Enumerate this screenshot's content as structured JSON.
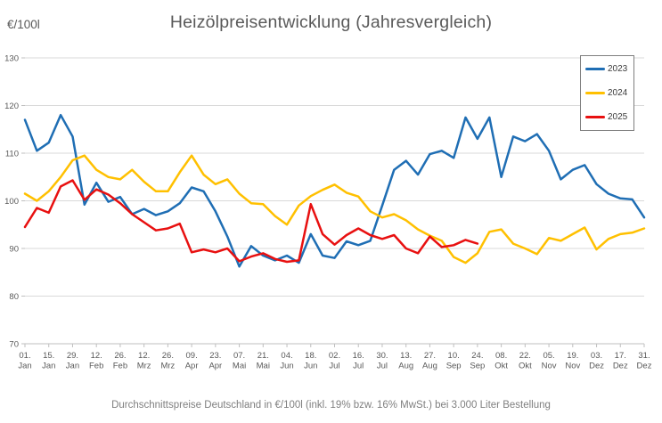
{
  "header": {
    "unit_label": "€/100l",
    "title": "Heizölpreisentwicklung (Jahresvergleich)"
  },
  "footer": {
    "caption": "Durchschnittspreise Deutschland in €/100l (inkl. 19% bzw. 16% MwSt.) bei 3.000 Liter Bestellung"
  },
  "colors": {
    "series_2023": "#1f6eb4",
    "series_2024": "#ffc000",
    "series_2025": "#e81010",
    "grid": "#d9d9d9",
    "axis": "#bfbfbf",
    "axis_text": "#595959",
    "title_text": "#595959",
    "legend_border": "#7f7f7f",
    "legend_text": "#3b3b3b",
    "footer_text": "#7f7f7f",
    "background": "#ffffff"
  },
  "chart_data": {
    "type": "line",
    "title": "Heizölpreisentwicklung (Jahresvergleich)",
    "ylabel": "€/100l",
    "xlabel": "",
    "ylim": [
      70,
      130
    ],
    "yticks": [
      130,
      120,
      110,
      100,
      90,
      80,
      70
    ],
    "grid": true,
    "legend_position": "top-right",
    "legend_entries": [
      "2023",
      "2024",
      "2025"
    ],
    "x_unit": "day_of_year",
    "days_in_year": 364,
    "sample_step_days": 7,
    "xticks": [
      "01. Jan",
      "15. Jan",
      "29. Jan",
      "12. Feb",
      "26. Feb",
      "12. Mrz",
      "26. Mrz",
      "09. Apr",
      "23. Apr",
      "07. Mai",
      "21. Mai",
      "04. Jun",
      "18. Jun",
      "02. Jul",
      "16. Jul",
      "30. Jul",
      "13. Aug",
      "27. Aug",
      "10. Sep",
      "24. Sep",
      "08. Okt",
      "22. Okt",
      "05. Nov",
      "19. Nov",
      "03. Dez",
      "17. Dez",
      "31. Dez"
    ],
    "series": [
      {
        "name": "2023",
        "color": "#1f6eb4",
        "values": [
          117,
          110.5,
          112.2,
          118,
          113.5,
          99.2,
          103.8,
          99.8,
          100.8,
          97.2,
          98.3,
          97,
          97.8,
          99.5,
          102.8,
          102,
          97.8,
          92.5,
          86.2,
          90.5,
          88.5,
          87.5,
          88.5,
          87,
          93,
          88.5,
          88,
          91.5,
          90.7,
          91.6,
          99,
          106.5,
          108.4,
          105.5,
          109.8,
          110.5,
          109,
          117.5,
          113,
          117.5,
          105,
          113.5,
          112.5,
          114,
          110.5,
          104.5,
          106.5,
          107.5,
          103.5,
          101.5,
          100.5,
          100.3,
          96.5
        ]
      },
      {
        "name": "2024",
        "color": "#ffc000",
        "values": [
          101.5,
          100,
          102,
          105,
          108.5,
          109.5,
          106.5,
          105,
          104.5,
          106.5,
          104,
          102,
          102,
          106,
          109.5,
          105.5,
          103.5,
          104.5,
          101.5,
          99.5,
          99.3,
          96.8,
          95,
          99,
          101,
          102.3,
          103.4,
          101.7,
          100.9,
          97.8,
          96.5,
          97.2,
          95.9,
          94,
          92.7,
          91.6,
          88.2,
          87,
          89,
          93.5,
          94,
          91,
          90,
          88.8,
          92.2,
          91.6,
          93,
          94.4,
          89.8,
          92,
          93,
          93.3,
          94.2
        ]
      },
      {
        "name": "2025",
        "color": "#e81010",
        "values": [
          94.5,
          98.5,
          97.5,
          103,
          104.3,
          100.2,
          102.4,
          101.3,
          99.5,
          97.2,
          95.5,
          93.8,
          94.2,
          95.2,
          89.2,
          89.8,
          89.2,
          90,
          87.3,
          88.3,
          89,
          87.8,
          87.2,
          87.5,
          99.3,
          93,
          90.8,
          92.8,
          94.2,
          92.8,
          92,
          92.8,
          90,
          89,
          92.5,
          90.3,
          90.7,
          91.8,
          91
        ]
      }
    ]
  }
}
